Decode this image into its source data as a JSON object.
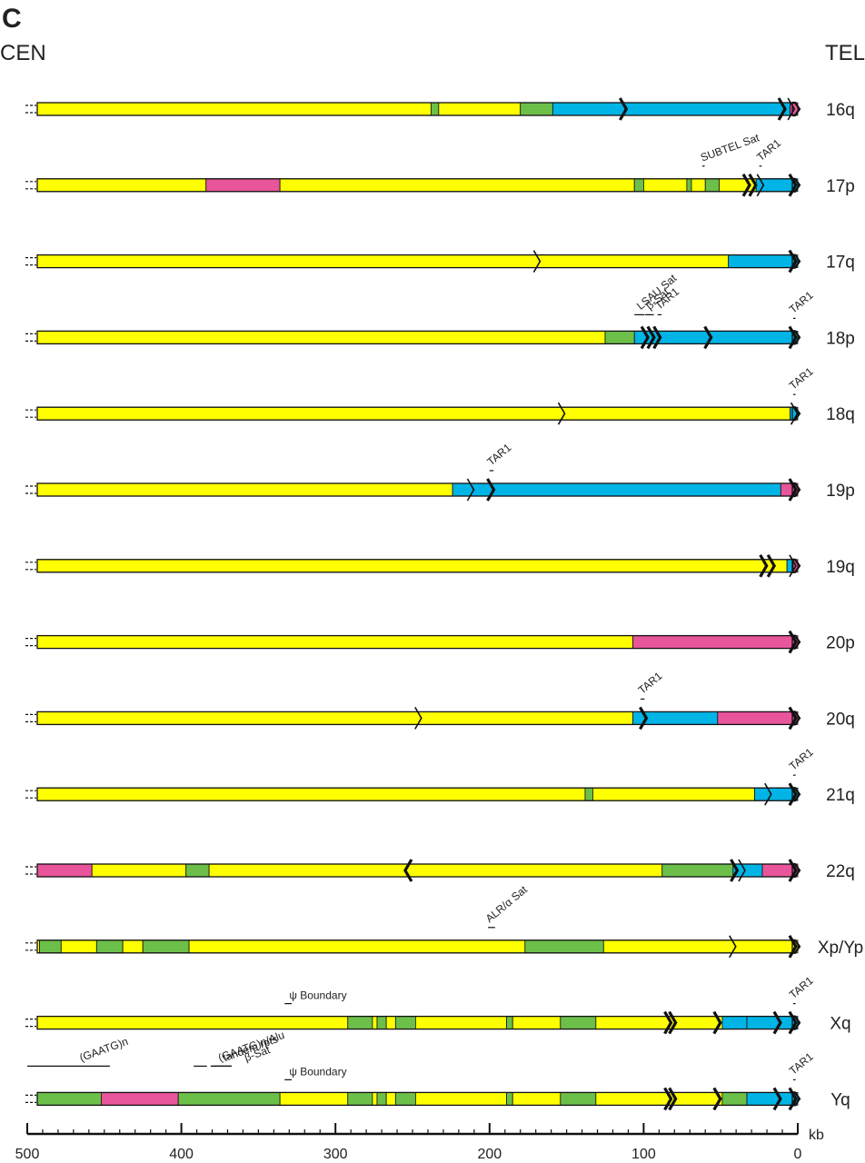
{
  "panel_label": "C",
  "ends": {
    "left": "CEN",
    "right": "TEL"
  },
  "colors": {
    "unique": "#ffff00",
    "segdup": "#6cc04a",
    "subtel": "#00b4e6",
    "pink": "#e8559a",
    "outline": "#111111"
  },
  "axis": {
    "unit": "kb",
    "min": 0,
    "max": 500,
    "ticks": [
      500,
      400,
      300,
      200,
      100,
      0
    ],
    "tick_labels": [
      "500",
      "400",
      "300",
      "200",
      "100",
      "0"
    ]
  },
  "rows": [
    {
      "label": "16q",
      "segments": [
        [
          500,
          238,
          "unique"
        ],
        [
          238,
          233,
          "segdup"
        ],
        [
          233,
          180,
          "unique"
        ],
        [
          180,
          159,
          "segdup"
        ],
        [
          159,
          5,
          "subtel"
        ],
        [
          5,
          0,
          "pink"
        ]
      ],
      "arrows": [
        [
          113,
          "right",
          "bold"
        ],
        [
          10,
          "right",
          "bold"
        ],
        [
          4,
          "right",
          "normal"
        ]
      ],
      "annotations": []
    },
    {
      "label": "17p",
      "segments": [
        [
          500,
          384,
          "unique"
        ],
        [
          384,
          336,
          "pink"
        ],
        [
          336,
          106,
          "unique"
        ],
        [
          106,
          100,
          "segdup"
        ],
        [
          100,
          72,
          "unique"
        ],
        [
          72,
          69,
          "segdup"
        ],
        [
          69,
          60,
          "unique"
        ],
        [
          60,
          51,
          "segdup"
        ],
        [
          51,
          27,
          "unique"
        ],
        [
          27,
          0,
          "subtel"
        ]
      ],
      "arrows": [
        [
          33,
          "right",
          "bold"
        ],
        [
          29,
          "right",
          "bold"
        ],
        [
          24,
          "right",
          "normal"
        ],
        [
          3,
          "right",
          "bold"
        ]
      ],
      "annotations": [
        {
          "text": "SUBTEL Sat",
          "kb": 62,
          "rotate": -20,
          "tick": [
            62,
            61
          ]
        },
        {
          "text": "TAR1",
          "kb": 24,
          "rotate": -40,
          "tick": [
            25,
            24
          ]
        }
      ]
    },
    {
      "label": "17q",
      "segments": [
        [
          500,
          45,
          "unique"
        ],
        [
          45,
          0,
          "subtel"
        ]
      ],
      "arrows": [
        [
          169,
          "right",
          "normal"
        ],
        [
          3,
          "right",
          "bold"
        ]
      ],
      "annotations": []
    },
    {
      "label": "18p",
      "segments": [
        [
          500,
          125,
          "unique"
        ],
        [
          125,
          106,
          "segdup"
        ],
        [
          106,
          0,
          "subtel"
        ]
      ],
      "arrows": [
        [
          99,
          "right",
          "bold"
        ],
        [
          95,
          "right",
          "bold"
        ],
        [
          91,
          "right",
          "bold"
        ],
        [
          58,
          "right",
          "bold"
        ],
        [
          3,
          "right",
          "bold"
        ]
      ],
      "annotations": [
        {
          "text": "LSAU Sat",
          "kb": 102,
          "rotate": -40,
          "tick": [
            106,
            100
          ]
        },
        {
          "text": "β-Sat",
          "kb": 96,
          "rotate": -40,
          "tick": [
            99,
            94
          ]
        },
        {
          "text": "TAR1",
          "kb": 90,
          "rotate": -40,
          "tick": [
            91,
            89
          ]
        },
        {
          "text": "TAR1",
          "kb": 3,
          "rotate": -40,
          "tick": [
            3,
            2
          ]
        }
      ]
    },
    {
      "label": "18q",
      "segments": [
        [
          500,
          5,
          "unique"
        ],
        [
          5,
          0,
          "subtel"
        ]
      ],
      "arrows": [
        [
          153,
          "right",
          "normal"
        ],
        [
          2,
          "right",
          "normal"
        ]
      ],
      "annotations": [
        {
          "text": "TAR1",
          "kb": 3,
          "rotate": -40,
          "tick": [
            3,
            2
          ]
        }
      ]
    },
    {
      "label": "19p",
      "segments": [
        [
          500,
          224,
          "unique"
        ],
        [
          224,
          11,
          "subtel"
        ],
        [
          11,
          0,
          "pink"
        ]
      ],
      "arrows": [
        [
          212,
          "right",
          "normal"
        ],
        [
          199,
          "right",
          "bold"
        ],
        [
          3,
          "right",
          "bold"
        ]
      ],
      "annotations": [
        {
          "text": "TAR1",
          "kb": 199,
          "rotate": -40,
          "tick": [
            200,
            198
          ]
        }
      ]
    },
    {
      "label": "19q",
      "segments": [
        [
          500,
          7,
          "unique"
        ],
        [
          7,
          3,
          "subtel"
        ],
        [
          3,
          0,
          "pink"
        ]
      ],
      "arrows": [
        [
          22,
          "right",
          "bold"
        ],
        [
          17,
          "right",
          "bold"
        ],
        [
          3,
          "right",
          "normal"
        ]
      ],
      "annotations": []
    },
    {
      "label": "20p",
      "segments": [
        [
          500,
          107,
          "unique"
        ],
        [
          107,
          0,
          "pink"
        ]
      ],
      "arrows": [
        [
          3,
          "right",
          "bold"
        ]
      ],
      "annotations": []
    },
    {
      "label": "20q",
      "segments": [
        [
          500,
          107,
          "unique"
        ],
        [
          107,
          52,
          "subtel"
        ],
        [
          52,
          0,
          "pink"
        ]
      ],
      "arrows": [
        [
          246,
          "right",
          "normal"
        ],
        [
          100,
          "right",
          "bold"
        ],
        [
          3,
          "right",
          "bold"
        ]
      ],
      "annotations": [
        {
          "text": "TAR1",
          "kb": 101,
          "rotate": -40,
          "tick": [
            102,
            100
          ]
        }
      ]
    },
    {
      "label": "21q",
      "segments": [
        [
          500,
          138,
          "unique"
        ],
        [
          138,
          133,
          "segdup"
        ],
        [
          133,
          28,
          "unique"
        ],
        [
          28,
          0,
          "subtel"
        ]
      ],
      "arrows": [
        [
          19,
          "right",
          "normal"
        ],
        [
          3,
          "right",
          "bold"
        ]
      ],
      "annotations": [
        {
          "text": "TAR1",
          "kb": 3,
          "rotate": -40,
          "tick": [
            3,
            2
          ]
        }
      ]
    },
    {
      "label": "22q",
      "segments": [
        [
          500,
          497,
          "unique"
        ],
        [
          497,
          458,
          "pink"
        ],
        [
          458,
          397,
          "unique"
        ],
        [
          397,
          382,
          "segdup"
        ],
        [
          382,
          88,
          "unique"
        ],
        [
          88,
          42,
          "segdup"
        ],
        [
          42,
          23,
          "subtel"
        ],
        [
          23,
          0,
          "pink"
        ]
      ],
      "arrows": [
        [
          253,
          "left",
          "bold"
        ],
        [
          41,
          "right",
          "bold"
        ],
        [
          36,
          "right",
          "normal"
        ],
        [
          3,
          "right",
          "bold"
        ]
      ],
      "annotations": []
    },
    {
      "label": "Xp/Yp",
      "segments": [
        [
          500,
          492,
          "unique"
        ],
        [
          492,
          478,
          "segdup"
        ],
        [
          478,
          455,
          "unique"
        ],
        [
          455,
          438,
          "segdup"
        ],
        [
          438,
          425,
          "unique"
        ],
        [
          425,
          395,
          "segdup"
        ],
        [
          395,
          177,
          "unique"
        ],
        [
          177,
          126,
          "segdup"
        ],
        [
          126,
          0,
          "unique"
        ]
      ],
      "arrows": [
        [
          42,
          "right",
          "normal"
        ],
        [
          3,
          "right",
          "bold"
        ]
      ],
      "annotations": [
        {
          "text": "ALR/α Sat",
          "kb": 200,
          "rotate": -40,
          "tick": [
            201,
            197
          ]
        }
      ]
    },
    {
      "label": "Xq",
      "segments": [
        [
          500,
          292,
          "unique"
        ],
        [
          292,
          276,
          "segdup"
        ],
        [
          276,
          273,
          "unique"
        ],
        [
          273,
          267,
          "segdup"
        ],
        [
          267,
          261,
          "unique"
        ],
        [
          261,
          248,
          "segdup"
        ],
        [
          248,
          189,
          "unique"
        ],
        [
          189,
          185,
          "segdup"
        ],
        [
          185,
          154,
          "unique"
        ],
        [
          154,
          131,
          "segdup"
        ],
        [
          131,
          49,
          "unique"
        ],
        [
          49,
          33,
          "subtel"
        ],
        [
          33,
          0,
          "subtel"
        ]
      ],
      "arrows": [
        [
          84,
          "right",
          "bold"
        ],
        [
          81,
          "right",
          "bold"
        ],
        [
          52,
          "right",
          "bold"
        ],
        [
          13,
          "right",
          "bold"
        ],
        [
          3,
          "right",
          "bold"
        ]
      ],
      "annotations": [
        {
          "text": "ψ Boundary",
          "kb": 330,
          "rotate": 0,
          "tick": [
            333,
            329
          ]
        },
        {
          "text": "TAR1",
          "kb": 3,
          "rotate": -40,
          "tick": [
            3,
            2
          ]
        }
      ]
    },
    {
      "label": "Yq",
      "segments": [
        [
          500,
          452,
          "segdup"
        ],
        [
          452,
          402,
          "pink"
        ],
        [
          402,
          336,
          "segdup"
        ],
        [
          336,
          292,
          "unique"
        ],
        [
          292,
          276,
          "segdup"
        ],
        [
          276,
          273,
          "unique"
        ],
        [
          273,
          267,
          "segdup"
        ],
        [
          267,
          261,
          "unique"
        ],
        [
          261,
          248,
          "segdup"
        ],
        [
          248,
          189,
          "unique"
        ],
        [
          189,
          185,
          "segdup"
        ],
        [
          185,
          154,
          "unique"
        ],
        [
          154,
          131,
          "segdup"
        ],
        [
          131,
          49,
          "unique"
        ],
        [
          49,
          33,
          "segdup"
        ],
        [
          33,
          0,
          "subtel"
        ]
      ],
      "arrows": [
        [
          84,
          "right",
          "bold"
        ],
        [
          81,
          "right",
          "bold"
        ],
        [
          52,
          "right",
          "bold"
        ],
        [
          13,
          "right",
          "bold"
        ],
        [
          3,
          "right",
          "bold"
        ]
      ],
      "annotations": [
        {
          "text": "(GAATG)n",
          "kb": 465,
          "rotate": -20,
          "tick": [
            500,
            447
          ]
        },
        {
          "text": "(GAATG)n/Alu",
          "kb": 375,
          "rotate": -20,
          "tick": [
            392,
            384
          ]
        },
        {
          "text": "tandem rpts",
          "kb": 372,
          "rotate": -20,
          "tick": [
            381,
            368
          ]
        },
        {
          "text": "β-Sat",
          "kb": 358,
          "rotate": -20,
          "tick": [
            380,
            368
          ]
        },
        {
          "text": "ψ Boundary",
          "kb": 330,
          "rotate": 0,
          "tick": [
            333,
            329
          ]
        },
        {
          "text": "TAR1",
          "kb": 3,
          "rotate": -40,
          "tick": [
            3,
            2
          ]
        }
      ]
    }
  ]
}
